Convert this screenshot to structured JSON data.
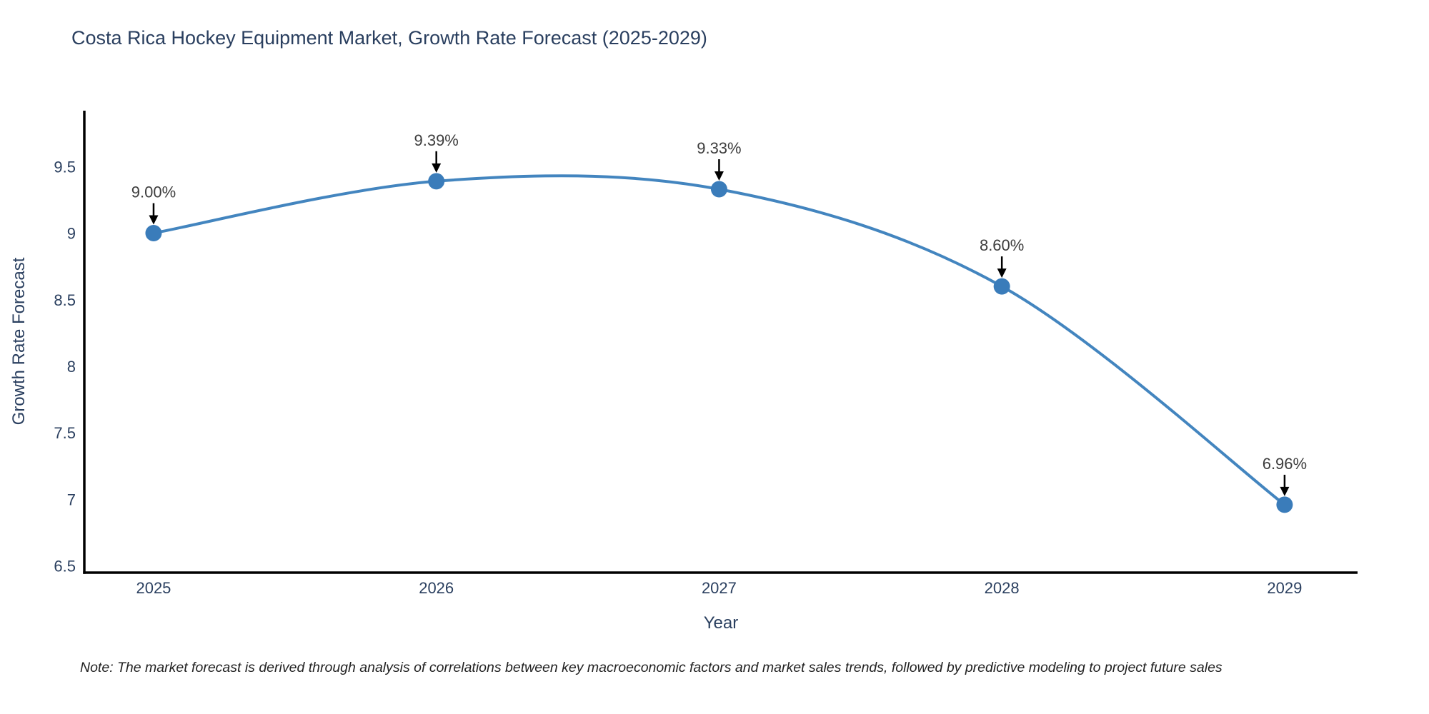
{
  "figure": {
    "note": "Note: The market forecast is derived through analysis of correlations between key macroeconomic factors and market sales trends, followed by predictive modeling to project future sales"
  },
  "chart_data": {
    "type": "line",
    "title": "Costa Rica Hockey Equipment Market, Growth Rate Forecast (2025-2029)",
    "xlabel": "Year",
    "ylabel": "Growth Rate Forecast",
    "x": [
      2025,
      2026,
      2027,
      2028,
      2029
    ],
    "x_tick_labels": [
      "2025",
      "2026",
      "2027",
      "2028",
      "2029"
    ],
    "values": [
      9.0,
      9.39,
      9.33,
      8.6,
      6.96
    ],
    "point_labels": [
      "9.00%",
      "9.39%",
      "9.33%",
      "8.60%",
      "6.96%"
    ],
    "ytick_values": [
      6.5,
      7,
      7.5,
      8,
      8.5,
      9,
      9.5
    ],
    "ytick_labels": [
      "6.5",
      "7",
      "7.5",
      "8",
      "8.5",
      "9",
      "9.5"
    ],
    "xlim": [
      2024.755,
      2029.258
    ],
    "ylim": [
      6.45,
      9.92
    ],
    "grid": false,
    "legend": "none",
    "line_shape": "spline",
    "colors": {
      "line": "#4385bf",
      "marker": "#3a7cba",
      "axis": "#000000",
      "tick_text": "#2a3f5f",
      "annotation_text": "#3d3d3d",
      "arrow": "#000000",
      "background": "#ffffff"
    }
  }
}
